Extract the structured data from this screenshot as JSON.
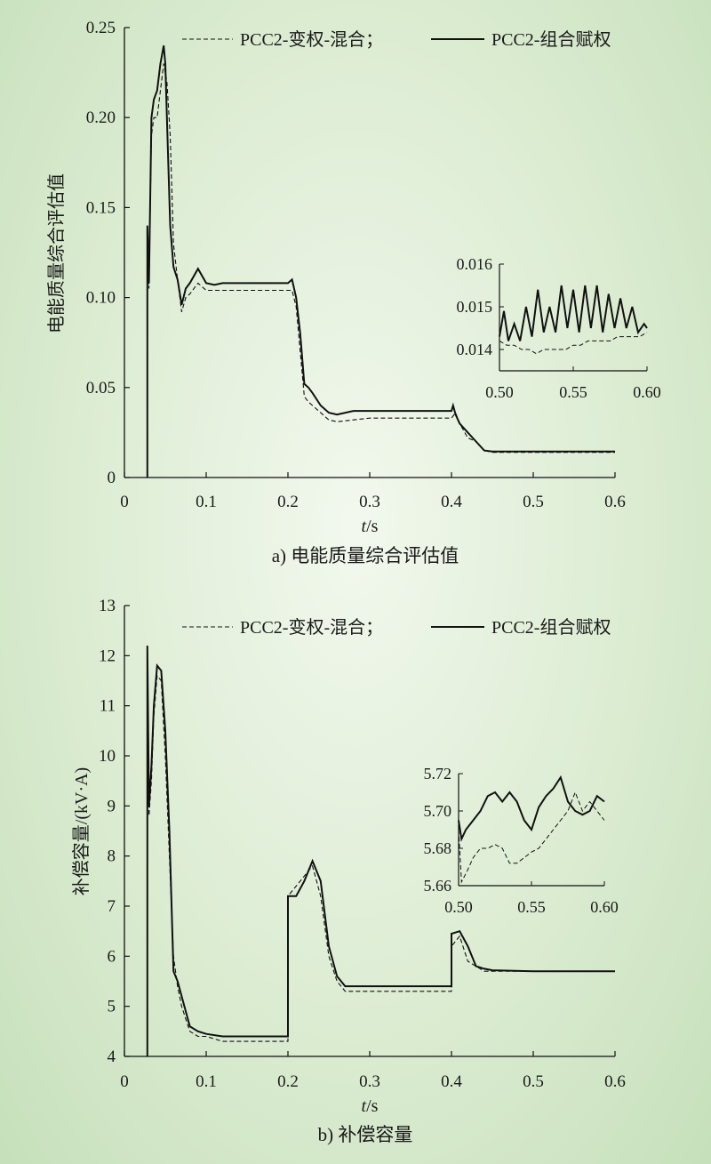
{
  "chart_data": [
    {
      "type": "line",
      "title": "a) 电能质量综合评估值",
      "xlabel_italic": "t",
      "xlabel_unit": "/s",
      "ylabel": "电能质量综合评估值",
      "xlim": [
        0,
        0.6
      ],
      "ylim": [
        0,
        0.25
      ],
      "x_ticks": [
        "0",
        "0.1",
        "0.2",
        "0.3",
        "0.4",
        "0.5",
        "0.6"
      ],
      "y_ticks": [
        "0",
        "0.05",
        "0.10",
        "0.15",
        "0.20",
        "0.25"
      ],
      "legend_placement": "top-right",
      "series": [
        {
          "name": "PCC2-变权-混合；",
          "style": "dashed",
          "x": [
            0.028,
            0.028,
            0.03,
            0.033,
            0.036,
            0.04,
            0.044,
            0.048,
            0.052,
            0.056,
            0.06,
            0.065,
            0.07,
            0.075,
            0.08,
            0.09,
            0.1,
            0.11,
            0.12,
            0.14,
            0.16,
            0.18,
            0.2,
            0.205,
            0.21,
            0.215,
            0.22,
            0.225,
            0.23,
            0.24,
            0.25,
            0.26,
            0.28,
            0.3,
            0.35,
            0.4,
            0.405,
            0.41,
            0.42,
            0.43,
            0.44,
            0.45,
            0.5,
            0.55,
            0.6
          ],
          "y": [
            0,
            0.13,
            0.105,
            0.19,
            0.2,
            0.2,
            0.215,
            0.23,
            0.22,
            0.19,
            0.13,
            0.11,
            0.092,
            0.1,
            0.102,
            0.108,
            0.104,
            0.104,
            0.104,
            0.104,
            0.104,
            0.104,
            0.104,
            0.104,
            0.095,
            0.07,
            0.045,
            0.042,
            0.04,
            0.036,
            0.032,
            0.031,
            0.032,
            0.033,
            0.033,
            0.033,
            0.036,
            0.03,
            0.022,
            0.02,
            0.015,
            0.014,
            0.014,
            0.014,
            0.014
          ]
        },
        {
          "name": "PCC2-组合赋权",
          "style": "solid",
          "x": [
            0.028,
            0.028,
            0.03,
            0.033,
            0.036,
            0.04,
            0.044,
            0.048,
            0.05,
            0.052,
            0.056,
            0.06,
            0.065,
            0.07,
            0.075,
            0.08,
            0.09,
            0.1,
            0.11,
            0.12,
            0.14,
            0.16,
            0.18,
            0.2,
            0.205,
            0.21,
            0.215,
            0.22,
            0.225,
            0.23,
            0.24,
            0.25,
            0.26,
            0.28,
            0.3,
            0.35,
            0.4,
            0.402,
            0.405,
            0.41,
            0.42,
            0.43,
            0.44,
            0.45,
            0.5,
            0.55,
            0.6
          ],
          "y": [
            0,
            0.14,
            0.108,
            0.2,
            0.21,
            0.215,
            0.23,
            0.24,
            0.23,
            0.2,
            0.14,
            0.117,
            0.11,
            0.096,
            0.105,
            0.108,
            0.116,
            0.108,
            0.107,
            0.108,
            0.108,
            0.108,
            0.108,
            0.108,
            0.11,
            0.1,
            0.08,
            0.052,
            0.05,
            0.047,
            0.04,
            0.036,
            0.035,
            0.037,
            0.037,
            0.037,
            0.037,
            0.04,
            0.035,
            0.03,
            0.025,
            0.02,
            0.015,
            0.0145,
            0.0145,
            0.0145,
            0.0145
          ]
        }
      ],
      "inset": {
        "xlim": [
          0.5,
          0.6
        ],
        "ylim": [
          0.0135,
          0.016
        ],
        "x_ticks": [
          "0.50",
          "0.55",
          "0.60"
        ],
        "y_ticks": [
          "0.014",
          "0.015",
          "0.016"
        ],
        "series": [
          {
            "name": "PCC2-变权-混合；",
            "style": "dashed",
            "x": [
              0.5,
              0.505,
              0.51,
              0.515,
              0.52,
              0.525,
              0.53,
              0.535,
              0.54,
              0.545,
              0.55,
              0.555,
              0.56,
              0.565,
              0.57,
              0.575,
              0.58,
              0.585,
              0.59,
              0.595,
              0.6
            ],
            "y": [
              0.0142,
              0.0141,
              0.0141,
              0.014,
              0.014,
              0.0139,
              0.014,
              0.014,
              0.014,
              0.014,
              0.0141,
              0.0141,
              0.0142,
              0.0142,
              0.0142,
              0.0142,
              0.0143,
              0.0143,
              0.0143,
              0.0143,
              0.0144
            ]
          },
          {
            "name": "PCC2-组合赋权",
            "style": "solid",
            "x": [
              0.5,
              0.503,
              0.506,
              0.51,
              0.514,
              0.518,
              0.522,
              0.526,
              0.53,
              0.534,
              0.538,
              0.542,
              0.546,
              0.55,
              0.554,
              0.558,
              0.562,
              0.566,
              0.57,
              0.574,
              0.578,
              0.582,
              0.586,
              0.59,
              0.594,
              0.598,
              0.6
            ],
            "y": [
              0.0143,
              0.0149,
              0.0142,
              0.0146,
              0.0142,
              0.015,
              0.0143,
              0.0154,
              0.0144,
              0.015,
              0.0144,
              0.0155,
              0.0145,
              0.0154,
              0.0144,
              0.0155,
              0.0145,
              0.0155,
              0.0144,
              0.0153,
              0.0145,
              0.0152,
              0.0145,
              0.015,
              0.0144,
              0.0146,
              0.0145
            ]
          }
        ]
      }
    },
    {
      "type": "line",
      "title": "b) 补偿容量",
      "xlabel_italic": "t",
      "xlabel_unit": "/s",
      "ylabel": "补偿容量/(kV·A)",
      "xlim": [
        0,
        0.6
      ],
      "ylim": [
        4,
        13
      ],
      "x_ticks": [
        "0",
        "0.1",
        "0.2",
        "0.3",
        "0.4",
        "0.5",
        "0.6"
      ],
      "y_ticks": [
        "4",
        "5",
        "6",
        "7",
        "8",
        "9",
        "10",
        "11",
        "12",
        "13"
      ],
      "legend_placement": "top-right",
      "series": [
        {
          "name": "PCC2-变权-混合；",
          "style": "dashed",
          "x": [
            0.028,
            0.028,
            0.03,
            0.033,
            0.036,
            0.04,
            0.045,
            0.05,
            0.055,
            0.06,
            0.065,
            0.07,
            0.08,
            0.09,
            0.1,
            0.12,
            0.15,
            0.2,
            0.2,
            0.21,
            0.22,
            0.23,
            0.24,
            0.25,
            0.26,
            0.27,
            0.3,
            0.35,
            0.4,
            0.4,
            0.41,
            0.42,
            0.43,
            0.44,
            0.45,
            0.5,
            0.55,
            0.6
          ],
          "y": [
            4,
            11.5,
            8.8,
            9.5,
            10.8,
            11.6,
            11.5,
            10,
            8,
            6,
            5.4,
            5,
            4.5,
            4.4,
            4.4,
            4.3,
            4.3,
            4.3,
            7.2,
            7.4,
            7.6,
            7.8,
            7.2,
            6,
            5.5,
            5.3,
            5.3,
            5.3,
            5.3,
            6.2,
            6.4,
            5.9,
            5.8,
            5.7,
            5.7,
            5.7,
            5.7,
            5.7
          ]
        },
        {
          "name": "PCC2-组合赋权",
          "style": "solid",
          "x": [
            0.028,
            0.028,
            0.03,
            0.033,
            0.036,
            0.04,
            0.045,
            0.05,
            0.055,
            0.06,
            0.065,
            0.07,
            0.08,
            0.09,
            0.1,
            0.12,
            0.15,
            0.2,
            0.2,
            0.21,
            0.22,
            0.23,
            0.24,
            0.25,
            0.26,
            0.27,
            0.3,
            0.35,
            0.4,
            0.4,
            0.41,
            0.42,
            0.43,
            0.44,
            0.45,
            0.5,
            0.55,
            0.6
          ],
          "y": [
            4,
            12.2,
            9,
            9.8,
            11,
            11.8,
            11.7,
            10.5,
            8.5,
            5.7,
            5.5,
            5.2,
            4.6,
            4.5,
            4.45,
            4.4,
            4.4,
            4.4,
            7.2,
            7.2,
            7.5,
            7.9,
            7.5,
            6.2,
            5.6,
            5.4,
            5.4,
            5.4,
            5.4,
            6.45,
            6.5,
            6.2,
            5.8,
            5.75,
            5.72,
            5.7,
            5.7,
            5.7
          ]
        }
      ],
      "inset": {
        "xlim": [
          0.5,
          0.6
        ],
        "ylim": [
          5.66,
          5.72
        ],
        "x_ticks": [
          "0.50",
          "0.55",
          "0.60"
        ],
        "y_ticks": [
          "5.66",
          "5.68",
          "5.70",
          "5.72"
        ],
        "series": [
          {
            "name": "PCC2-变权-混合；",
            "style": "dashed",
            "x": [
              0.5,
              0.502,
              0.506,
              0.51,
              0.515,
              0.52,
              0.525,
              0.53,
              0.535,
              0.54,
              0.545,
              0.55,
              0.555,
              0.56,
              0.565,
              0.57,
              0.575,
              0.58,
              0.585,
              0.59,
              0.595,
              0.6
            ],
            "y": [
              5.69,
              5.662,
              5.668,
              5.675,
              5.68,
              5.68,
              5.682,
              5.68,
              5.672,
              5.672,
              5.675,
              5.678,
              5.68,
              5.685,
              5.69,
              5.695,
              5.7,
              5.71,
              5.7,
              5.705,
              5.7,
              5.695
            ]
          },
          {
            "name": "PCC2-组合赋权",
            "style": "solid",
            "x": [
              0.5,
              0.502,
              0.505,
              0.51,
              0.515,
              0.52,
              0.525,
              0.53,
              0.535,
              0.54,
              0.545,
              0.55,
              0.555,
              0.56,
              0.565,
              0.57,
              0.575,
              0.58,
              0.585,
              0.59,
              0.595,
              0.6
            ],
            "y": [
              5.695,
              5.685,
              5.69,
              5.695,
              5.7,
              5.708,
              5.71,
              5.705,
              5.71,
              5.705,
              5.695,
              5.69,
              5.702,
              5.708,
              5.712,
              5.718,
              5.705,
              5.7,
              5.698,
              5.7,
              5.708,
              5.705
            ]
          }
        ]
      }
    }
  ]
}
